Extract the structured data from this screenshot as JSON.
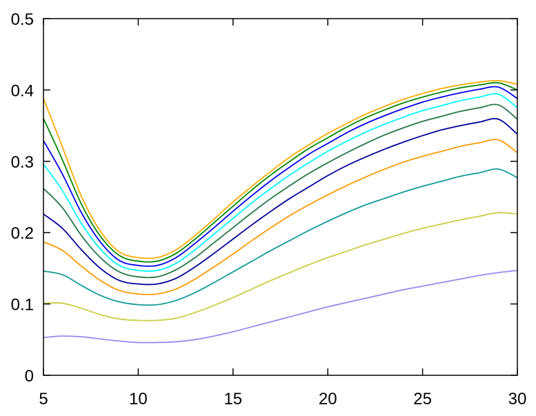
{
  "chart_data": {
    "type": "line",
    "title": "",
    "xlabel": "",
    "ylabel": "",
    "xlim": [
      5,
      30
    ],
    "ylim": [
      0,
      0.5
    ],
    "x_ticks": [
      5,
      10,
      15,
      20,
      25,
      30
    ],
    "x_tick_labels": [
      "5",
      "10",
      "15",
      "20",
      "25",
      "30"
    ],
    "y_ticks": [
      0,
      0.1,
      0.2,
      0.3,
      0.4,
      0.5
    ],
    "y_tick_labels": [
      "0",
      "0.1",
      "0.2",
      "0.3",
      "0.4",
      "0.5"
    ],
    "grid": false,
    "legend": "none",
    "x": [
      5,
      6,
      7,
      8,
      9,
      10,
      11,
      12,
      13,
      14,
      15,
      16,
      17,
      18,
      19,
      20,
      21,
      22,
      23,
      24,
      25,
      26,
      27,
      28,
      29,
      30
    ],
    "series": [
      {
        "color": "#9988ee",
        "values": [
          0.053,
          0.055,
          0.054,
          0.051,
          0.048,
          0.046,
          0.046,
          0.047,
          0.05,
          0.055,
          0.061,
          0.068,
          0.075,
          0.082,
          0.089,
          0.096,
          0.102,
          0.108,
          0.114,
          0.12,
          0.125,
          0.13,
          0.135,
          0.14,
          0.144,
          0.147
        ]
      },
      {
        "color": "#cccc44",
        "values": [
          0.101,
          0.101,
          0.094,
          0.085,
          0.079,
          0.077,
          0.077,
          0.08,
          0.088,
          0.098,
          0.109,
          0.121,
          0.133,
          0.144,
          0.155,
          0.165,
          0.174,
          0.183,
          0.191,
          0.199,
          0.206,
          0.212,
          0.218,
          0.223,
          0.228,
          0.226
        ]
      },
      {
        "color": "#119999",
        "values": [
          0.146,
          0.141,
          0.126,
          0.112,
          0.103,
          0.099,
          0.099,
          0.105,
          0.116,
          0.13,
          0.145,
          0.16,
          0.175,
          0.189,
          0.203,
          0.216,
          0.228,
          0.239,
          0.248,
          0.257,
          0.265,
          0.272,
          0.279,
          0.284,
          0.289,
          0.277
        ]
      },
      {
        "color": "#ff9900",
        "values": [
          0.187,
          0.175,
          0.153,
          0.133,
          0.119,
          0.114,
          0.114,
          0.121,
          0.135,
          0.152,
          0.17,
          0.189,
          0.207,
          0.224,
          0.239,
          0.253,
          0.266,
          0.278,
          0.289,
          0.299,
          0.307,
          0.314,
          0.321,
          0.326,
          0.33,
          0.312
        ]
      },
      {
        "color": "#000099",
        "values": [
          0.226,
          0.206,
          0.176,
          0.15,
          0.133,
          0.128,
          0.128,
          0.136,
          0.152,
          0.171,
          0.191,
          0.211,
          0.23,
          0.248,
          0.264,
          0.28,
          0.294,
          0.306,
          0.317,
          0.327,
          0.336,
          0.344,
          0.35,
          0.355,
          0.359,
          0.338
        ]
      },
      {
        "color": "#227744",
        "values": [
          0.262,
          0.235,
          0.196,
          0.165,
          0.145,
          0.138,
          0.138,
          0.148,
          0.165,
          0.186,
          0.207,
          0.228,
          0.248,
          0.266,
          0.283,
          0.298,
          0.312,
          0.325,
          0.337,
          0.347,
          0.356,
          0.363,
          0.37,
          0.375,
          0.379,
          0.359
        ]
      },
      {
        "color": "#00ffff",
        "values": [
          0.296,
          0.259,
          0.213,
          0.177,
          0.154,
          0.147,
          0.147,
          0.157,
          0.176,
          0.198,
          0.22,
          0.242,
          0.262,
          0.281,
          0.298,
          0.314,
          0.328,
          0.341,
          0.352,
          0.362,
          0.371,
          0.378,
          0.385,
          0.39,
          0.394,
          0.375
        ]
      },
      {
        "color": "#0000ee",
        "values": [
          0.329,
          0.282,
          0.228,
          0.187,
          0.161,
          0.154,
          0.154,
          0.165,
          0.185,
          0.207,
          0.23,
          0.252,
          0.273,
          0.292,
          0.31,
          0.325,
          0.34,
          0.353,
          0.364,
          0.374,
          0.383,
          0.39,
          0.396,
          0.401,
          0.404,
          0.388
        ]
      },
      {
        "color": "#008800",
        "values": [
          0.36,
          0.302,
          0.24,
          0.195,
          0.168,
          0.16,
          0.16,
          0.171,
          0.191,
          0.214,
          0.237,
          0.26,
          0.281,
          0.3,
          0.318,
          0.333,
          0.348,
          0.361,
          0.372,
          0.382,
          0.39,
          0.397,
          0.403,
          0.407,
          0.41,
          0.4
        ]
      },
      {
        "color": "#ffaa00",
        "values": [
          0.388,
          0.32,
          0.251,
          0.202,
          0.173,
          0.165,
          0.165,
          0.176,
          0.196,
          0.219,
          0.243,
          0.265,
          0.286,
          0.306,
          0.323,
          0.339,
          0.353,
          0.366,
          0.377,
          0.387,
          0.395,
          0.402,
          0.407,
          0.411,
          0.413,
          0.408
        ]
      }
    ]
  }
}
